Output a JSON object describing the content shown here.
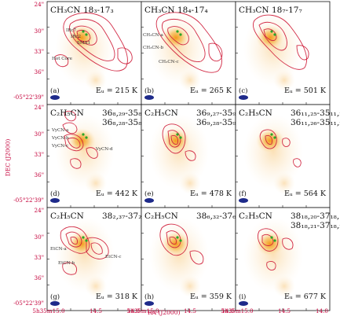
{
  "figure": {
    "axes": {
      "xlabel": "RA (J2000)",
      "ylabel": "DEC (J2000)",
      "x_ticks": [
        "5h35m15.0",
        "14.5",
        "14.0"
      ],
      "y_ticks": [
        "24\"",
        "30\"",
        "33\"",
        "36\"",
        "-05°22'39\""
      ]
    },
    "panels": [
      {
        "letter": "(a)",
        "molecule": "CH₃CN 18₃-17₃",
        "transitions": [],
        "eu": "Eᵤ = 215 K",
        "labels": [
          "IRc7",
          "IRc2",
          "SMA1",
          "Hot Core"
        ]
      },
      {
        "letter": "(b)",
        "molecule": "CH₃CN 18₄-17₄",
        "transitions": [],
        "eu": "Eᵤ = 265 K",
        "labels": [
          "CH₃CN-a",
          "CH₃CN-b",
          "CH₃CN-c"
        ]
      },
      {
        "letter": "(c)",
        "molecule": "CH₃CN 18₇-17₇",
        "transitions": [],
        "eu": "Eᵤ = 501 K",
        "labels": []
      },
      {
        "letter": "(d)",
        "molecule": "C₂H₅CN",
        "transitions": [
          "36₈,₂₉-35₈,₂₈",
          "36₈,₂₈-35₈,₂₇"
        ],
        "eu": "Eᵤ = 442 K",
        "labels": [
          "VyCN-a",
          "VyCN-b",
          "VyCN-c",
          "VyCN-d"
        ]
      },
      {
        "letter": "(e)",
        "molecule": "C₂H₅CN",
        "transitions": [
          "36₉,₂₇-35₉,₂₆",
          "36₉,₂₈-35₉,₂₇"
        ],
        "eu": "Eᵤ = 478 K",
        "labels": []
      },
      {
        "letter": "(f)",
        "molecule": "C₂H₅CN",
        "transitions": [
          "36₁₁,₂₅-35₁₁,₂₄",
          "36₁₁,₂₆-35₁₁,₂₅"
        ],
        "eu": "Eᵤ = 564 K",
        "labels": []
      },
      {
        "letter": "(g)",
        "molecule": "C₂H₅CN",
        "transitions": [
          "38₂,₃₇-37₂,₃₆"
        ],
        "eu": "Eᵤ = 318 K",
        "labels": [
          "EtCN-a",
          "EtCN-b",
          "EtCN-c"
        ]
      },
      {
        "letter": "(h)",
        "molecule": "C₂H₅CN",
        "transitions": [
          "38₆,₃₂-37₆,₃₁"
        ],
        "eu": "Eᵤ = 359 K",
        "labels": []
      },
      {
        "letter": "(i)",
        "molecule": "C₂H₅CN",
        "transitions": [
          "38₁₈,₂₀-37₁₈,₁₉",
          "38₁₈,₂₁-37₁₈,₂₀"
        ],
        "eu": "Eᵤ = 677 K",
        "labels": []
      }
    ]
  }
}
